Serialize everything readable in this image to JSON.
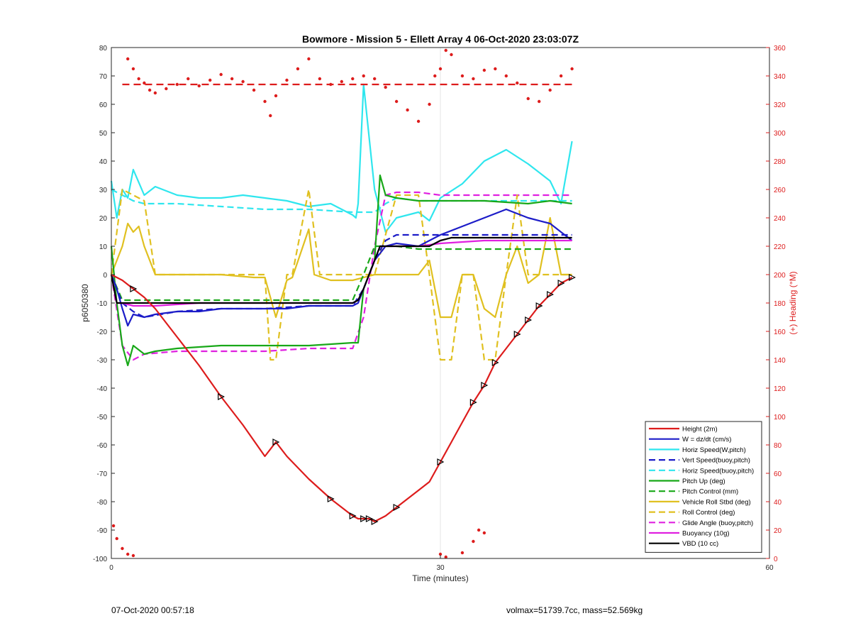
{
  "chart_data": {
    "type": "line",
    "title": "Bowmore - Mission 5 - Ellett Array 4 06-Oct-2020 23:03:07Z",
    "xlabel": "Time (minutes)",
    "ylabel": "p6050380",
    "y2label": "(+) Heading (°M)",
    "xlim": [
      0,
      60
    ],
    "ylim": [
      -100,
      80
    ],
    "y2lim": [
      0,
      360
    ],
    "xticks": [
      "0",
      "30",
      "60"
    ],
    "yticks": [
      "-100",
      "-90",
      "-80",
      "-70",
      "-60",
      "-50",
      "-40",
      "-30",
      "-20",
      "-10",
      "0",
      "10",
      "20",
      "30",
      "40",
      "50",
      "60",
      "70",
      "80"
    ],
    "y2ticks": [
      "0",
      "20",
      "40",
      "60",
      "80",
      "100",
      "120",
      "140",
      "160",
      "180",
      "200",
      "220",
      "240",
      "260",
      "280",
      "300",
      "320",
      "340",
      "360"
    ],
    "grid": "x-only at 30",
    "legend_position": "lower-right",
    "series": [
      {
        "name": "Height (2m)",
        "color": "#dd1c1c",
        "style": "solid",
        "axis": "left",
        "x": [
          0,
          0.5,
          1,
          2,
          3,
          4,
          5,
          6,
          8,
          10,
          12,
          14,
          15,
          16,
          18,
          20,
          22,
          22.5,
          23,
          23.5,
          24,
          25,
          26,
          27,
          28,
          29,
          30,
          31,
          32,
          33,
          34,
          35,
          36,
          37,
          38,
          39,
          40,
          41,
          42
        ],
        "y": [
          0,
          -1,
          -2,
          -5,
          -8,
          -12,
          -17,
          -22,
          -32,
          -43,
          -53,
          -64,
          -59,
          -64,
          -72,
          -79,
          -85,
          -86,
          -86,
          -86,
          -87,
          -85,
          -82,
          -79,
          -76,
          -73,
          -66,
          -59,
          -52,
          -45,
          -39,
          -31,
          -26,
          -21,
          -16,
          -11,
          -7,
          -3,
          -1
        ]
      },
      {
        "name": "W = dz/dt (cm/s)",
        "color": "#1c1cc8",
        "style": "solid",
        "axis": "left",
        "x": [
          0,
          0.5,
          1,
          1.5,
          2,
          3,
          4,
          6,
          8,
          10,
          12,
          14,
          16,
          18,
          20,
          22,
          22.5,
          23,
          24,
          25,
          26,
          28,
          30,
          32,
          34,
          36,
          38,
          40,
          41,
          42
        ],
        "y": [
          0,
          -5,
          -12,
          -18,
          -14,
          -15,
          -14,
          -13,
          -13,
          -12,
          -12,
          -12,
          -12,
          -11,
          -11,
          -11,
          -10,
          -5,
          5,
          10,
          11,
          10,
          14,
          17,
          20,
          23,
          20,
          18,
          15,
          12
        ]
      },
      {
        "name": "Horiz Speed(W,pitch)",
        "color": "#2fe6ee",
        "style": "solid",
        "axis": "left",
        "x": [
          0,
          0.5,
          1,
          1.5,
          2,
          3,
          4,
          6,
          8,
          10,
          12,
          14,
          16,
          18,
          20,
          22,
          22.3,
          22.5,
          23,
          24,
          25,
          26,
          28,
          29,
          30,
          32,
          34,
          36,
          38,
          40,
          41,
          42
        ],
        "y": [
          33,
          20,
          30,
          27,
          37,
          28,
          31,
          28,
          27,
          27,
          28,
          27,
          26,
          24,
          25,
          21,
          20,
          25,
          67,
          30,
          15,
          20,
          22,
          19,
          27,
          32,
          40,
          44,
          39,
          33,
          25,
          47
        ]
      },
      {
        "name": "Vert Speed(buoy,pitch)",
        "color": "#1c1cc8",
        "style": "dashed",
        "axis": "left",
        "x": [
          0,
          1,
          2,
          3,
          6,
          10,
          14,
          18,
          22,
          23,
          24,
          25,
          26,
          28,
          30,
          34,
          38,
          40,
          42
        ],
        "y": [
          0,
          -10,
          -13,
          -15,
          -13,
          -12,
          -12,
          -11,
          -11,
          -5,
          5,
          12,
          14,
          14,
          14,
          14,
          14,
          14,
          14
        ]
      },
      {
        "name": "Horiz Speed(buoy,pitch)",
        "color": "#2fe6ee",
        "style": "dashed",
        "axis": "left",
        "x": [
          0,
          1,
          2,
          3,
          6,
          10,
          14,
          18,
          22,
          23,
          24,
          25,
          26,
          28,
          30,
          34,
          38,
          40,
          42
        ],
        "y": [
          30,
          28,
          26,
          25,
          25,
          24,
          23,
          23,
          22,
          22,
          22,
          25,
          27,
          26,
          26,
          26,
          26,
          26,
          26
        ]
      },
      {
        "name": "Pitch Up (deg)",
        "color": "#18a818",
        "style": "solid",
        "axis": "left",
        "x": [
          0,
          0.5,
          1,
          1.5,
          2,
          3,
          4,
          6,
          10,
          14,
          18,
          22,
          22.5,
          23,
          24,
          24.5,
          25,
          26,
          28,
          30,
          34,
          38,
          40,
          42
        ],
        "y": [
          10,
          -10,
          -25,
          -32,
          -25,
          -28,
          -27,
          -26,
          -25,
          -25,
          -25,
          -24,
          -24,
          -5,
          5,
          35,
          28,
          27,
          26,
          26,
          26,
          25,
          26,
          25
        ]
      },
      {
        "name": "Pitch Control (mm)",
        "color": "#18a818",
        "style": "dashed",
        "axis": "left",
        "x": [
          0,
          1,
          3,
          6,
          10,
          14,
          18,
          22,
          23,
          24,
          25,
          26,
          28,
          30,
          34,
          38,
          42
        ],
        "y": [
          0,
          -9,
          -9,
          -9,
          -9,
          -9,
          -9,
          -9,
          0,
          10,
          10,
          10,
          9,
          9,
          9,
          9,
          9
        ]
      },
      {
        "name": "Vehicle Roll Stbd (deg)",
        "color": "#e0c020",
        "style": "solid",
        "axis": "left",
        "x": [
          0,
          1,
          1.5,
          2,
          2.5,
          3,
          4,
          6,
          10,
          13,
          14,
          15,
          16,
          16.5,
          18,
          18.5,
          20,
          22,
          24,
          26,
          27,
          28,
          29,
          30,
          31,
          32,
          33,
          34,
          35,
          36,
          37,
          38,
          39,
          40,
          41,
          42
        ],
        "y": [
          0,
          10,
          18,
          15,
          17,
          10,
          0,
          0,
          0,
          -1,
          -1,
          -15,
          -2,
          -1,
          16,
          0,
          -2,
          -2,
          0,
          0,
          0,
          0,
          5,
          -15,
          -15,
          0,
          0,
          -12,
          -15,
          0,
          10,
          -3,
          0,
          20,
          0,
          0
        ]
      },
      {
        "name": "Roll Control (deg)",
        "color": "#e0c020",
        "style": "dashed",
        "axis": "left",
        "x": [
          0,
          1,
          2,
          3,
          4,
          6,
          10,
          14,
          14.5,
          15,
          16,
          16.5,
          18,
          19,
          20,
          22,
          24,
          26,
          28,
          29,
          30,
          31,
          32,
          33,
          34,
          35,
          36,
          37,
          38,
          40,
          42
        ],
        "y": [
          0,
          30,
          28,
          26,
          0,
          0,
          0,
          0,
          -30,
          -30,
          0,
          0,
          30,
          0,
          0,
          0,
          0,
          28,
          28,
          0,
          -30,
          -30,
          0,
          0,
          -30,
          -30,
          0,
          28,
          0,
          0,
          0
        ]
      },
      {
        "name": "Glide Angle (buoy,pitch)",
        "color": "#e020e0",
        "style": "dashed",
        "axis": "left",
        "x": [
          0,
          1,
          2,
          3,
          6,
          10,
          14,
          18,
          22,
          23,
          24,
          25,
          26,
          28,
          30,
          34,
          38,
          40,
          42
        ],
        "y": [
          0,
          -25,
          -30,
          -28,
          -27,
          -27,
          -27,
          -26,
          -26,
          -15,
          10,
          28,
          29,
          29,
          28,
          28,
          28,
          28,
          28
        ]
      },
      {
        "name": "Buoyancy (10g)",
        "color": "#e020e0",
        "style": "solid",
        "axis": "left",
        "x": [
          0,
          0.5,
          1,
          2,
          4,
          8,
          12,
          16,
          20,
          22,
          22.5,
          23,
          24,
          24.5,
          25,
          26,
          28,
          30,
          34,
          38,
          40,
          42
        ],
        "y": [
          0,
          -10,
          -10,
          -11,
          -11,
          -10,
          -10,
          -10,
          -10,
          -10,
          -9,
          -5,
          5,
          10,
          10,
          10,
          10,
          11,
          12,
          12,
          12,
          12
        ]
      },
      {
        "name": "VBD (10 cc)",
        "color": "#000000",
        "style": "solid",
        "axis": "left",
        "x": [
          0,
          0.5,
          1,
          2,
          4,
          8,
          12,
          16,
          20,
          22,
          22.5,
          23,
          24,
          24.5,
          25,
          26,
          28,
          29,
          30,
          31,
          32,
          34,
          38,
          40,
          42
        ],
        "y": [
          0,
          -10,
          -10,
          -10,
          -10,
          -10,
          -10,
          -10,
          -10,
          -10,
          -9,
          -5,
          5,
          10,
          10,
          10,
          10,
          10,
          12,
          13,
          13,
          13,
          13,
          13,
          13
        ]
      }
    ],
    "heading": {
      "color": "#dd1c1c",
      "reference_line": 334,
      "x": [
        1.5,
        2,
        2.5,
        3,
        3.5,
        4,
        5,
        6,
        7,
        8,
        9,
        10,
        11,
        12,
        13,
        14,
        14.5,
        15,
        16,
        17,
        18,
        19,
        20,
        21,
        22,
        23,
        24,
        25,
        26,
        27,
        28,
        29,
        29.5,
        30,
        30.5,
        31,
        32,
        33,
        34,
        35,
        36,
        37,
        38,
        39,
        40,
        41,
        42,
        0.2,
        0.5,
        1,
        1.5,
        2,
        30,
        30.5,
        32,
        33,
        33.5,
        34
      ],
      "y": [
        352,
        345,
        338,
        335,
        330,
        328,
        331,
        334,
        338,
        333,
        337,
        341,
        338,
        336,
        330,
        322,
        312,
        326,
        337,
        345,
        352,
        338,
        334,
        336,
        338,
        340,
        338,
        332,
        322,
        316,
        308,
        320,
        340,
        345,
        358,
        355,
        340,
        338,
        344,
        345,
        340,
        335,
        324,
        322,
        330,
        340,
        345,
        23,
        14,
        7,
        3,
        2,
        3,
        1,
        4,
        12,
        20,
        18
      ]
    }
  },
  "footer": {
    "left": "07-Oct-2020 00:57:18",
    "right": "volmax=51739.7cc, mass=52.569kg"
  }
}
